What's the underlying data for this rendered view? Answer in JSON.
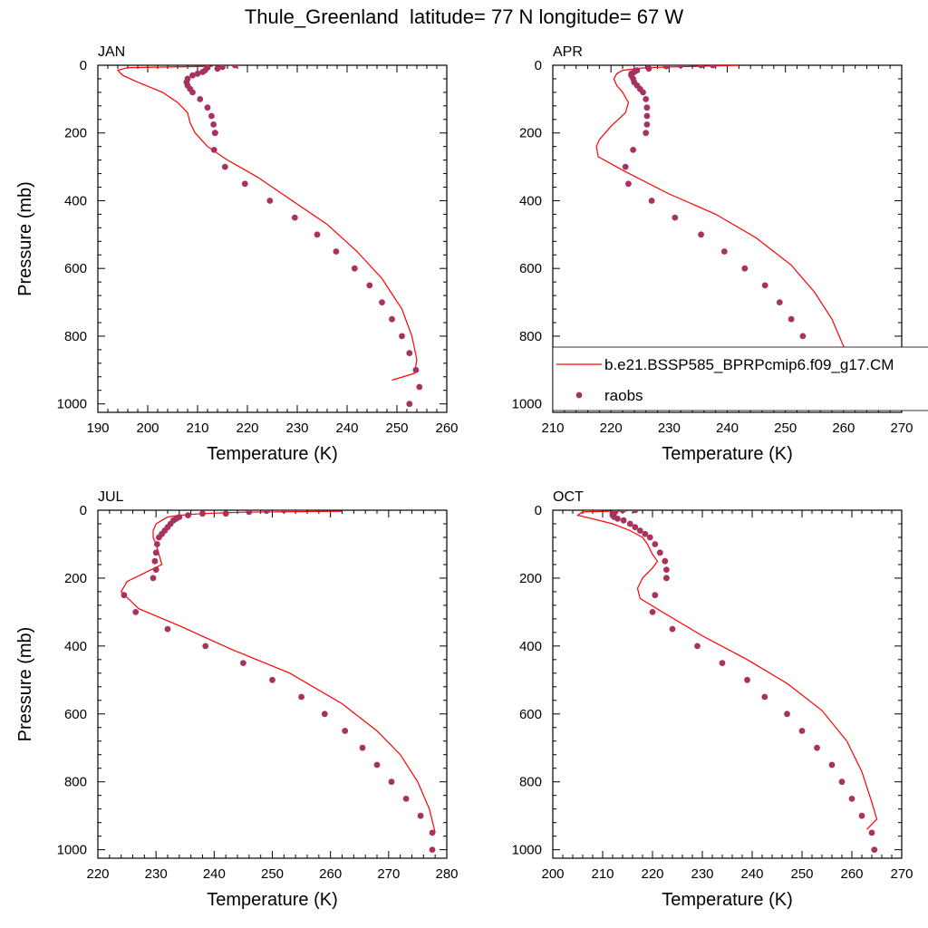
{
  "figure": {
    "title": "Thule_Greenland  latitude= 77 N longitude= 67 W"
  },
  "colors": {
    "model": "#ff0000",
    "obs": "#a8325f",
    "axis": "#000000"
  },
  "legend": {
    "model_label": "b.e21.BSSP585_BPRPcmip6.f09_g17.CM",
    "obs_label": "raobs"
  },
  "chart_data": [
    {
      "type": "line",
      "title": "JAN",
      "xlabel": "Temperature (K)",
      "ylabel": "Pressure (mb)",
      "xlim": [
        190,
        260
      ],
      "ylim": [
        1025,
        0
      ],
      "xticks": [
        190,
        200,
        210,
        220,
        230,
        240,
        250,
        260
      ],
      "yticks": [
        0,
        200,
        400,
        600,
        800,
        1000
      ],
      "grid": false,
      "series": [
        {
          "name": "b.e21.BSSP585_BPRPcmip6.f09_g17.CM",
          "kind": "line",
          "x": [
            213,
            196,
            194,
            195,
            198,
            203,
            206,
            208,
            208.5,
            209.5,
            212,
            216,
            222,
            229,
            236,
            242,
            247,
            251,
            253,
            254,
            253.5,
            249
          ],
          "y": [
            3,
            7,
            15,
            30,
            50,
            80,
            110,
            140,
            170,
            200,
            240,
            280,
            330,
            400,
            470,
            550,
            630,
            720,
            800,
            870,
            910,
            930
          ]
        },
        {
          "name": "raobs",
          "kind": "scatter",
          "x": [
            217.5,
            215,
            214,
            212,
            211.5,
            211,
            210,
            209,
            208,
            207.8,
            208,
            208.5,
            209,
            210.5,
            212,
            212.8,
            213.2,
            213.5,
            213.5,
            213.3,
            215.5,
            219.5,
            224.5,
            229.5,
            234,
            237.8,
            241.5,
            244.5,
            247,
            249,
            251,
            252.5,
            253.8,
            254.5,
            252.5
          ],
          "y": [
            0,
            5,
            10,
            7,
            15,
            20,
            25,
            30,
            40,
            50,
            60,
            70,
            80,
            100,
            125,
            150,
            175,
            200,
            200,
            250,
            300,
            350,
            400,
            450,
            500,
            550,
            600,
            650,
            700,
            750,
            800,
            850,
            900,
            950,
            1000
          ]
        }
      ]
    },
    {
      "type": "line",
      "title": "APR",
      "xlabel": "Temperature (K)",
      "ylabel": "",
      "xlim": [
        210,
        270
      ],
      "ylim": [
        1025,
        0
      ],
      "xticks": [
        210,
        220,
        230,
        240,
        250,
        260,
        270
      ],
      "yticks": [
        0,
        200,
        400,
        600,
        800,
        1000
      ],
      "grid": false,
      "series": [
        {
          "name": "b.e21.BSSP585_BPRPcmip6.f09_g17.CM",
          "kind": "line",
          "x": [
            242,
            226,
            222,
            221,
            220.5,
            221,
            222,
            223,
            222.5,
            220,
            218,
            217.5,
            217.8,
            222,
            230,
            238,
            245,
            251,
            255,
            258,
            260,
            261,
            259
          ],
          "y": [
            0,
            7,
            15,
            25,
            40,
            60,
            80,
            110,
            140,
            180,
            220,
            240,
            270,
            310,
            380,
            440,
            510,
            590,
            670,
            750,
            830,
            920,
            950
          ]
        },
        {
          "name": "raobs",
          "kind": "scatter",
          "x": [
            237.5,
            235.5,
            232,
            229.5,
            226.5,
            224.5,
            224,
            223.5,
            223.5,
            223.8,
            224,
            224.5,
            225,
            225.5,
            226,
            226.2,
            226.2,
            226.2,
            226,
            223.8,
            222.5,
            223,
            227,
            231,
            235.5,
            239.5,
            243,
            246.5,
            249,
            251,
            253,
            254.5,
            256,
            257,
            257
          ],
          "y": [
            0,
            0,
            0,
            3,
            10,
            15,
            20,
            25,
            30,
            40,
            50,
            60,
            70,
            80,
            100,
            125,
            150,
            175,
            200,
            250,
            300,
            350,
            400,
            450,
            500,
            550,
            600,
            650,
            700,
            750,
            800,
            850,
            900,
            950,
            1000
          ]
        }
      ]
    },
    {
      "type": "line",
      "title": "JUL",
      "xlabel": "Temperature (K)",
      "ylabel": "Pressure (mb)",
      "xlim": [
        220,
        280
      ],
      "ylim": [
        1025,
        0
      ],
      "xticks": [
        220,
        230,
        240,
        250,
        260,
        270,
        280
      ],
      "yticks": [
        0,
        200,
        400,
        600,
        800,
        1000
      ],
      "grid": false,
      "series": [
        {
          "name": "b.e21.BSSP585_BPRPcmip6.f09_g17.CM",
          "kind": "line",
          "x": [
            262,
            245,
            238,
            234,
            232,
            231,
            230,
            229.5,
            229.5,
            230,
            231,
            228,
            225,
            224,
            227,
            234,
            243,
            253,
            262,
            268,
            272,
            275,
            277,
            278
          ],
          "y": [
            3,
            6,
            10,
            15,
            20,
            30,
            40,
            60,
            80,
            100,
            160,
            185,
            210,
            240,
            290,
            340,
            410,
            480,
            570,
            650,
            720,
            800,
            880,
            950
          ]
        },
        {
          "name": "raobs",
          "kind": "scatter",
          "x": [
            252,
            249,
            246,
            242,
            238,
            235.5,
            234,
            233.5,
            233,
            232.5,
            232,
            231.5,
            231,
            230.5,
            230.2,
            230,
            229.8,
            230,
            229.5,
            224.5,
            226.5,
            232,
            238.5,
            245,
            250,
            255,
            259,
            262.5,
            265.5,
            268,
            270.5,
            273,
            275.5,
            277.5,
            277.5
          ],
          "y": [
            0,
            2,
            5,
            10,
            10,
            15,
            20,
            25,
            30,
            40,
            50,
            60,
            70,
            80,
            100,
            125,
            150,
            175,
            200,
            250,
            300,
            350,
            400,
            450,
            500,
            550,
            600,
            650,
            700,
            750,
            800,
            850,
            900,
            950,
            1000
          ]
        }
      ]
    },
    {
      "type": "line",
      "title": "OCT",
      "xlabel": "Temperature (K)",
      "ylabel": "",
      "xlim": [
        200,
        270
      ],
      "ylim": [
        1025,
        0
      ],
      "xticks": [
        200,
        210,
        220,
        230,
        240,
        250,
        260,
        270
      ],
      "yticks": [
        0,
        200,
        400,
        600,
        800,
        1000
      ],
      "grid": false,
      "series": [
        {
          "name": "b.e21.BSSP585_BPRPcmip6.f09_g17.CM",
          "kind": "line",
          "x": [
            215,
            206,
            205,
            208,
            212,
            215.5,
            218,
            219,
            220,
            221,
            220,
            218,
            217,
            217.5,
            222,
            230,
            239,
            247,
            254,
            259,
            262,
            264,
            265,
            263
          ],
          "y": [
            2,
            5,
            15,
            25,
            40,
            60,
            80,
            100,
            130,
            150,
            170,
            200,
            230,
            260,
            300,
            370,
            440,
            510,
            590,
            680,
            770,
            860,
            910,
            940
          ]
        },
        {
          "name": "raobs",
          "kind": "scatter",
          "x": [
            216.5,
            214,
            212.5,
            212,
            212,
            212.3,
            213,
            214.2,
            215.5,
            216.5,
            217.5,
            218.5,
            219.5,
            220.5,
            221.5,
            222.5,
            222.8,
            222.8,
            222.8,
            220.5,
            220,
            224,
            229,
            234,
            239,
            242.5,
            247,
            250,
            253,
            256,
            258,
            260,
            262,
            264,
            264.5
          ],
          "y": [
            0,
            0,
            5,
            10,
            15,
            20,
            25,
            30,
            40,
            50,
            60,
            70,
            80,
            100,
            125,
            150,
            175,
            200,
            200,
            250,
            300,
            350,
            400,
            450,
            500,
            550,
            600,
            650,
            700,
            750,
            800,
            850,
            900,
            950,
            1000
          ]
        }
      ]
    }
  ]
}
